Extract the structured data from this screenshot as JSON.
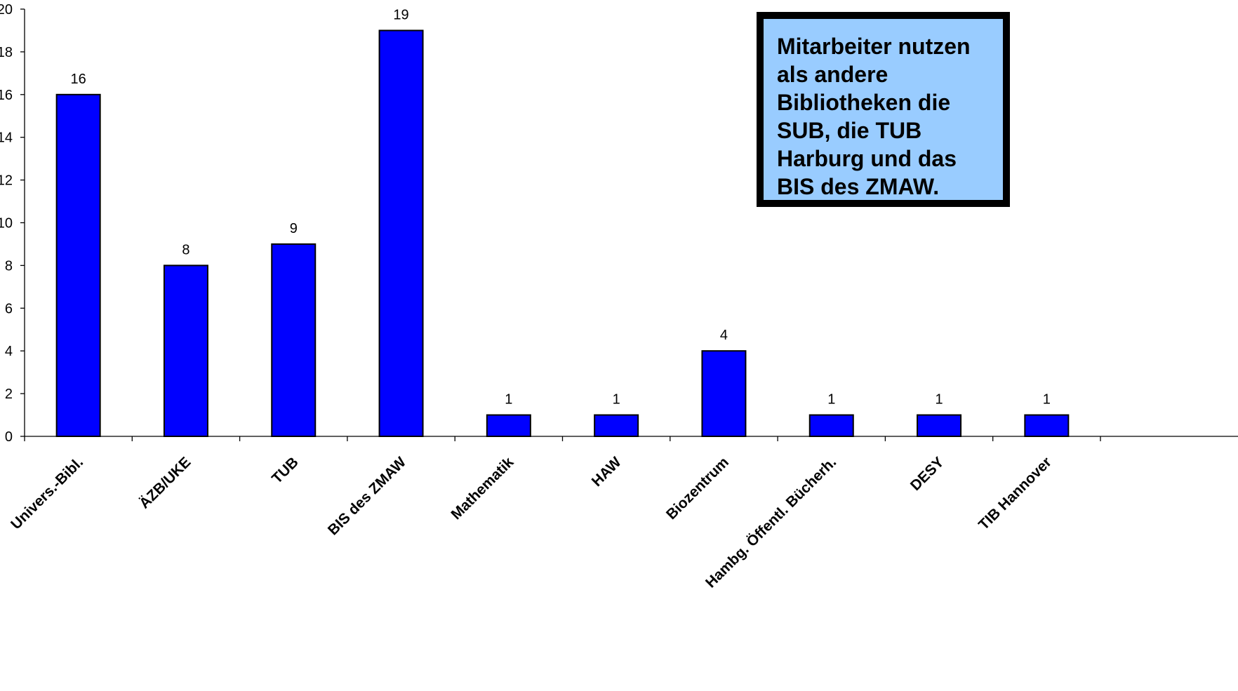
{
  "chart_data": {
    "type": "bar",
    "categories": [
      "Univers.-Bibl.",
      "ÄZB/UKE",
      "TUB",
      "BIS des ZMAW",
      "Mathematik",
      "HAW",
      "Biozentrum",
      "Hambg. Öffentl. Bücherh.",
      "DESY",
      "TIB Hannover"
    ],
    "values": [
      16,
      8,
      9,
      19,
      1,
      1,
      4,
      1,
      1,
      1
    ],
    "data_labels": [
      "16",
      "8",
      "9",
      "19",
      "1",
      "1",
      "4",
      "1",
      "1",
      "1"
    ],
    "y_ticks": [
      "0",
      "2",
      "4",
      "6",
      "8",
      "10",
      "12",
      "14",
      "16",
      "18",
      "20"
    ],
    "ylim": [
      0,
      20
    ],
    "bar_color": "#0000ff",
    "grid": false,
    "legend": "none"
  },
  "callout": {
    "text": "Mitarbeiter nutzen als andere Bibliotheken die SUB, die TUB Harburg und das BIS des ZMAW.",
    "background": "#99ccff"
  }
}
